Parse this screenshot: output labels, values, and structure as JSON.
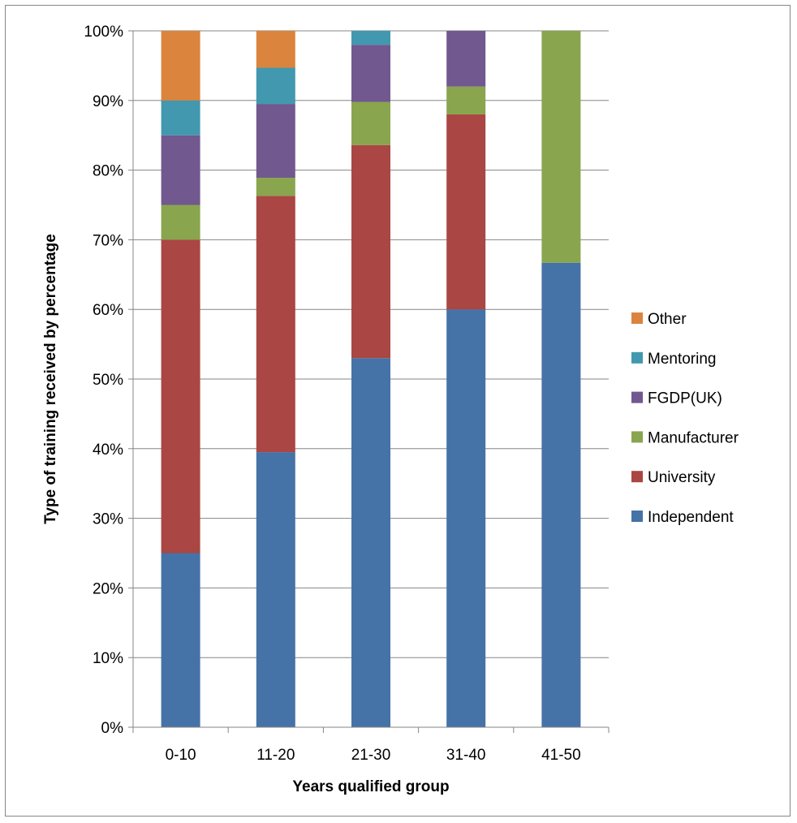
{
  "chart_data": {
    "type": "bar",
    "stacked": true,
    "categories": [
      "0-10",
      "11-20",
      "21-30",
      "31-40",
      "41-50"
    ],
    "series": [
      {
        "name": "Independent",
        "color": "#4572a7",
        "values": [
          25,
          39.5,
          53,
          60,
          66.7
        ]
      },
      {
        "name": "University",
        "color": "#aa4643",
        "values": [
          45,
          36.8,
          30.6,
          28,
          0
        ]
      },
      {
        "name": "Manufacturer",
        "color": "#89a54e",
        "values": [
          5,
          2.6,
          6.2,
          4,
          33.3
        ]
      },
      {
        "name": "FGDP(UK)",
        "color": "#71588f",
        "values": [
          10,
          10.6,
          8.2,
          8,
          0
        ]
      },
      {
        "name": "Mentoring",
        "color": "#4198af",
        "values": [
          5,
          5.2,
          2,
          0,
          0
        ]
      },
      {
        "name": "Other",
        "color": "#db843d",
        "values": [
          10,
          5.3,
          0,
          0,
          0
        ]
      }
    ],
    "yticks": [
      "0%",
      "10%",
      "20%",
      "30%",
      "40%",
      "50%",
      "60%",
      "70%",
      "80%",
      "90%",
      "100%"
    ],
    "ylim": [
      0,
      100
    ],
    "xlabel": "Years qualified group",
    "ylabel": "Type of training received by percentage",
    "grid": true,
    "legend_position": "right",
    "legend_order": [
      "Other",
      "Mentoring",
      "FGDP(UK)",
      "Manufacturer",
      "University",
      "Independent"
    ]
  }
}
